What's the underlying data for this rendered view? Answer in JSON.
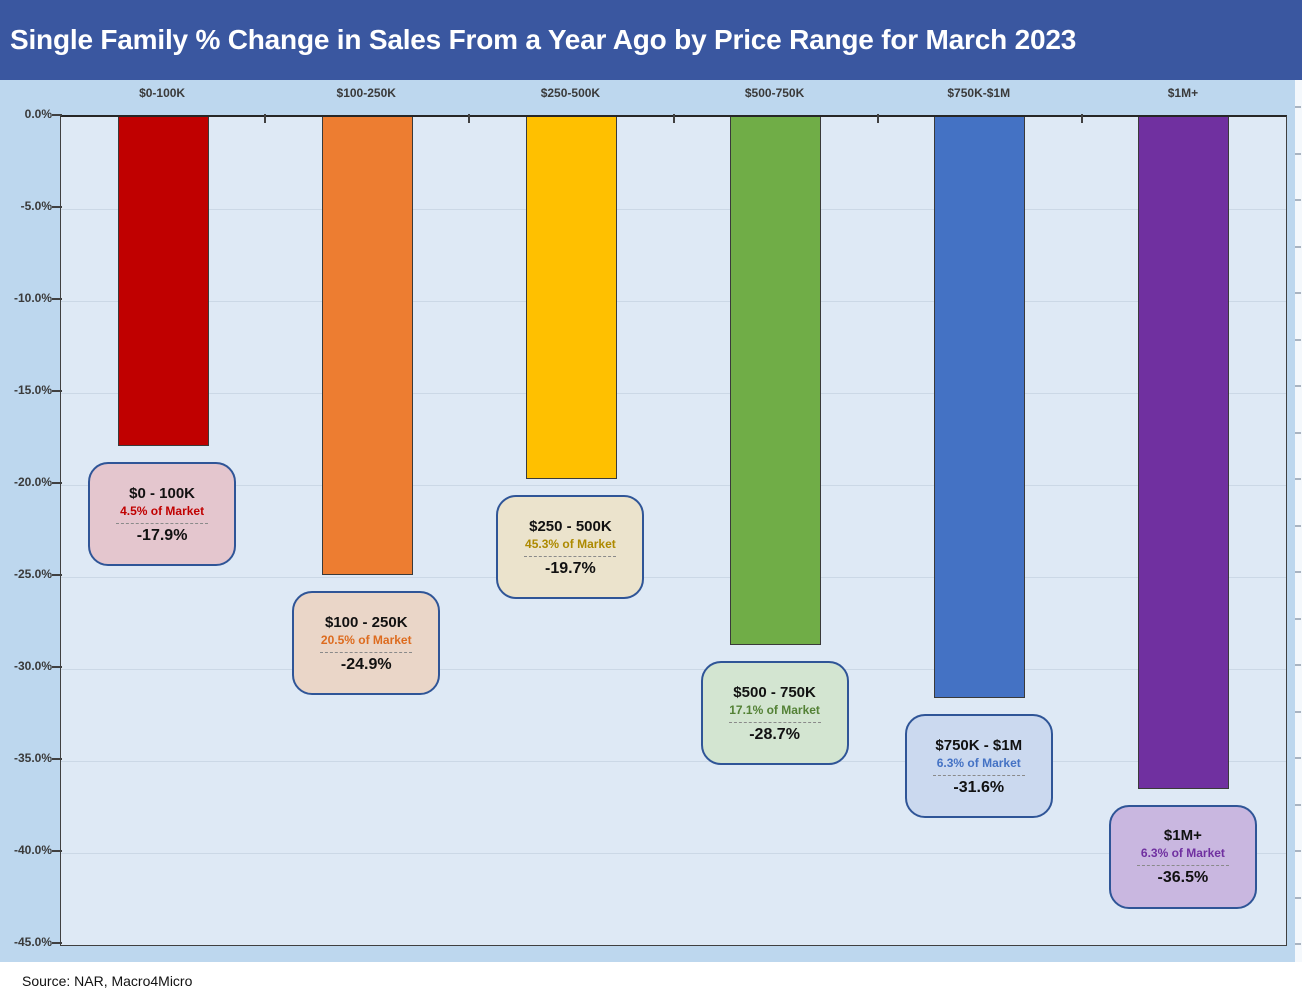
{
  "header": {
    "title": "Single Family % Change in Sales From a Year Ago by Price Range for March 2023"
  },
  "footer": {
    "source": "Source: NAR, Macro4Micro"
  },
  "chart_data": {
    "type": "bar",
    "title": "Single Family % Change in Sales From a Year Ago by Price Range for March 2023",
    "categories": [
      "$0-100K",
      "$100-250K",
      "$250-500K",
      "$500-750K",
      "$750K-$1M",
      "$1M+"
    ],
    "values": [
      -17.9,
      -24.9,
      -19.7,
      -28.7,
      -31.6,
      -36.5
    ],
    "unit": "%",
    "ylim": [
      -45,
      0
    ],
    "ytick_step": 5,
    "ytick_labels": [
      "0.0%",
      "-5.0%",
      "-10.0%",
      "-15.0%",
      "-20.0%",
      "-25.0%",
      "-30.0%",
      "-35.0%",
      "-40.0%",
      "-45.0%"
    ],
    "grid": true,
    "legend": false,
    "bar_colors": [
      "#C00000",
      "#ED7D31",
      "#FFC000",
      "#70AD47",
      "#4472C4",
      "#7030A0"
    ],
    "callouts": [
      {
        "range_label": "$0 - 100K",
        "market_share": "4.5% of Market",
        "value_label": "-17.9%",
        "fill": "#E4C6CE",
        "share_color": "#C00000"
      },
      {
        "range_label": "$100 - 250K",
        "market_share": "20.5% of Market",
        "value_label": "-24.9%",
        "fill": "#EAD6C8",
        "share_color": "#DD6B1E"
      },
      {
        "range_label": "$250 - 500K",
        "market_share": "45.3% of Market",
        "value_label": "-19.7%",
        "fill": "#EBE3CC",
        "share_color": "#AD8A00"
      },
      {
        "range_label": "$500 - 750K",
        "market_share": "17.1% of Market",
        "value_label": "-28.7%",
        "fill": "#D3E5D1",
        "share_color": "#538135"
      },
      {
        "range_label": "$750K - $1M",
        "market_share": "6.3% of Market",
        "value_label": "-31.6%",
        "fill": "#CBD9EF",
        "share_color": "#4472C4"
      },
      {
        "range_label": "$1M+",
        "market_share": "6.3% of Market",
        "value_label": "-36.5%",
        "fill": "#C9B7E0",
        "share_color": "#7030A0"
      }
    ],
    "colors": {
      "header_bg": "#3A57A0",
      "chart_bg": "#BDD7EE",
      "plot_bg": "#DEE9F5",
      "axis": "#404040",
      "gridline": "#CBD8E6",
      "callout_border": "#2F5597"
    }
  }
}
